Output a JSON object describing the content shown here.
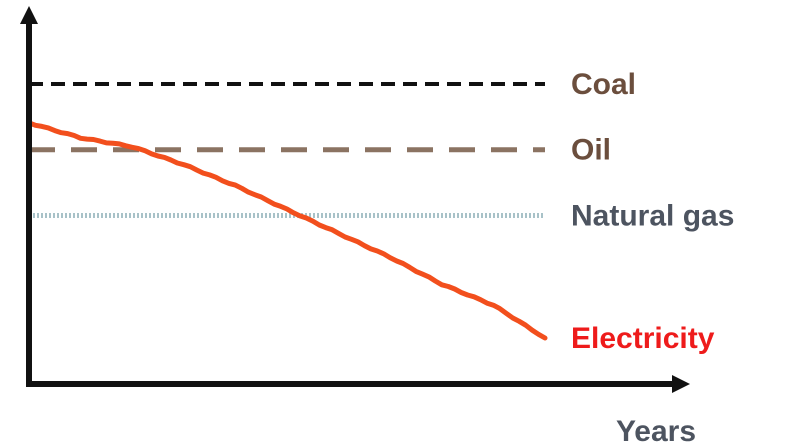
{
  "chart_data": {
    "type": "line",
    "title": "",
    "xlabel": "Years",
    "ylabel": "",
    "grid": false,
    "legend": "labels at right end of each line",
    "x": [
      0,
      10,
      20,
      30,
      40,
      50,
      60,
      70,
      80,
      90,
      100
    ],
    "xlim": [
      0,
      100
    ],
    "ylim": [
      0,
      100
    ],
    "series": [
      {
        "name": "Coal",
        "style": "dashed",
        "color": "#111111",
        "label_color": "#6b4e3d",
        "values": [
          97,
          97,
          97,
          97,
          97,
          97,
          97,
          97,
          97,
          97,
          97
        ]
      },
      {
        "name": "Oil",
        "style": "dashed",
        "color": "#8b7362",
        "label_color": "#6b4e3d",
        "values": [
          75,
          75,
          75,
          75,
          75,
          75,
          75,
          75,
          75,
          75,
          75
        ]
      },
      {
        "name": "Natural gas",
        "style": "dotted",
        "color": "#a8c2c8",
        "label_color": "#4d5460",
        "values": [
          53,
          53,
          53,
          53,
          53,
          53,
          53,
          53,
          53,
          53,
          53
        ]
      },
      {
        "name": "Electricity",
        "style": "solid",
        "color": "#f24f1d",
        "label_color": "#ee1b1b",
        "values": [
          84,
          79,
          76,
          70,
          63,
          55,
          47,
          39,
          30,
          23,
          12
        ]
      }
    ]
  }
}
